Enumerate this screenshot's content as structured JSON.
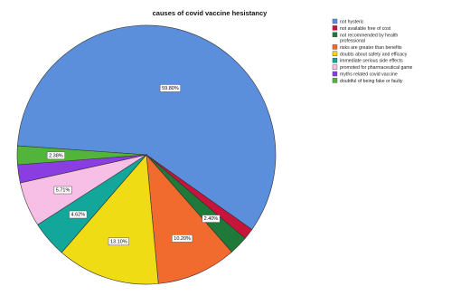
{
  "chart_data": {
    "type": "pie",
    "title": "causes of covid vaccine hesistancy",
    "slices": [
      {
        "name": "not hysteric",
        "value": 59.8,
        "label": "59.80%",
        "color": "#5b8fdc"
      },
      {
        "name": "not available free of cost",
        "value": 1.4,
        "label": "",
        "color": "#c8143a"
      },
      {
        "name": "not recommended by health professional",
        "value": 2.4,
        "label": "2.40%",
        "color": "#1f7a3a"
      },
      {
        "name": "risks are greater than benefits",
        "value": 10.2,
        "label": "10.20%",
        "color": "#f26b2e"
      },
      {
        "name": "doubts about safety and efficacy",
        "value": 13.1,
        "label": "13.10%",
        "color": "#f0dc14"
      },
      {
        "name": "immediate serious side effects",
        "value": 4.62,
        "label": "4.62%",
        "color": "#12a79a"
      },
      {
        "name": "promoted for pharmaceutical game",
        "value": 5.71,
        "label": "5.71%",
        "color": "#f7bfe6"
      },
      {
        "name": "myths related covid vaccine",
        "value": 2.3,
        "label": "",
        "color": "#8a3de0"
      },
      {
        "name": "doubtful of being fake or faulty",
        "value": 2.38,
        "label": "2.38%",
        "color": "#52b43a"
      }
    ],
    "legend_position": "top-right"
  }
}
